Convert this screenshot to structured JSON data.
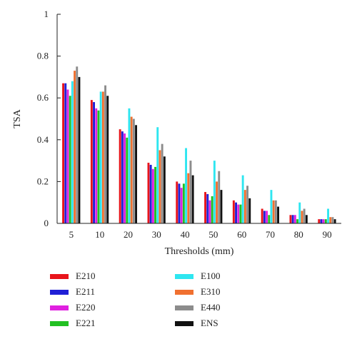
{
  "chart_data": {
    "type": "bar",
    "title": "",
    "xlabel": "Thresholds (mm)",
    "ylabel": "TSA",
    "categories": [
      "5",
      "10",
      "20",
      "30",
      "40",
      "50",
      "60",
      "70",
      "80",
      "90"
    ],
    "ylim": [
      0,
      1
    ],
    "yticks": [
      "0",
      "0.2",
      "0.4",
      "0.6",
      "0.8",
      "1"
    ],
    "ytick_values": [
      0,
      0.2,
      0.4,
      0.6,
      0.8,
      1
    ],
    "grid": false,
    "legend_position": "bottom",
    "series": [
      {
        "name": "E210",
        "color": "#e8141b",
        "values": [
          0.67,
          0.59,
          0.45,
          0.29,
          0.2,
          0.15,
          0.11,
          0.07,
          0.04,
          0.02
        ]
      },
      {
        "name": "E211",
        "color": "#1f1fd6",
        "values": [
          0.67,
          0.58,
          0.44,
          0.28,
          0.19,
          0.14,
          0.1,
          0.06,
          0.04,
          0.02
        ]
      },
      {
        "name": "E220",
        "color": "#e020e0",
        "values": [
          0.64,
          0.55,
          0.43,
          0.26,
          0.17,
          0.11,
          0.09,
          0.06,
          0.04,
          0.02
        ]
      },
      {
        "name": "E221",
        "color": "#22c022",
        "values": [
          0.61,
          0.54,
          0.41,
          0.27,
          0.19,
          0.13,
          0.09,
          0.04,
          0.02,
          0.02
        ]
      },
      {
        "name": "E100",
        "color": "#2ee6f0",
        "values": [
          0.68,
          0.63,
          0.55,
          0.46,
          0.36,
          0.3,
          0.23,
          0.16,
          0.1,
          0.07
        ]
      },
      {
        "name": "E310",
        "color": "#f07030",
        "values": [
          0.73,
          0.63,
          0.51,
          0.35,
          0.24,
          0.2,
          0.16,
          0.11,
          0.06,
          0.03
        ]
      },
      {
        "name": "E440",
        "color": "#8c8c8c",
        "values": [
          0.75,
          0.66,
          0.5,
          0.38,
          0.3,
          0.25,
          0.18,
          0.11,
          0.07,
          0.03
        ]
      },
      {
        "name": "ENS",
        "color": "#111111",
        "values": [
          0.7,
          0.61,
          0.47,
          0.32,
          0.23,
          0.16,
          0.12,
          0.08,
          0.04,
          0.02
        ]
      }
    ]
  }
}
